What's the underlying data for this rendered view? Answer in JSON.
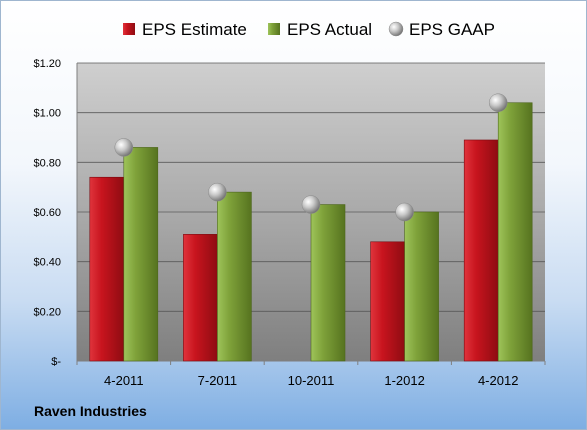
{
  "chart_data": {
    "type": "bar",
    "categories": [
      "4-2011",
      "7-2011",
      "10-2011",
      "1-2012",
      "4-2012"
    ],
    "series": [
      {
        "name": "EPS Estimate",
        "values": [
          0.74,
          0.51,
          null,
          0.48,
          0.89
        ],
        "color": "#c8141e"
      },
      {
        "name": "EPS Actual",
        "values": [
          0.86,
          0.68,
          0.63,
          0.6,
          1.04
        ],
        "color": "#7fa23a"
      },
      {
        "name": "EPS GAAP",
        "values": [
          0.86,
          0.68,
          0.63,
          0.6,
          1.04
        ],
        "color": "#b8b8b8",
        "marker": "sphere"
      }
    ],
    "yticks": [
      "$-",
      "$0.20",
      "$0.40",
      "$0.60",
      "$0.80",
      "$1.00",
      "$1.20"
    ],
    "ylim": [
      0,
      1.2
    ],
    "grid": true,
    "legend_position": "top"
  },
  "footer": {
    "company": "Raven Industries"
  }
}
